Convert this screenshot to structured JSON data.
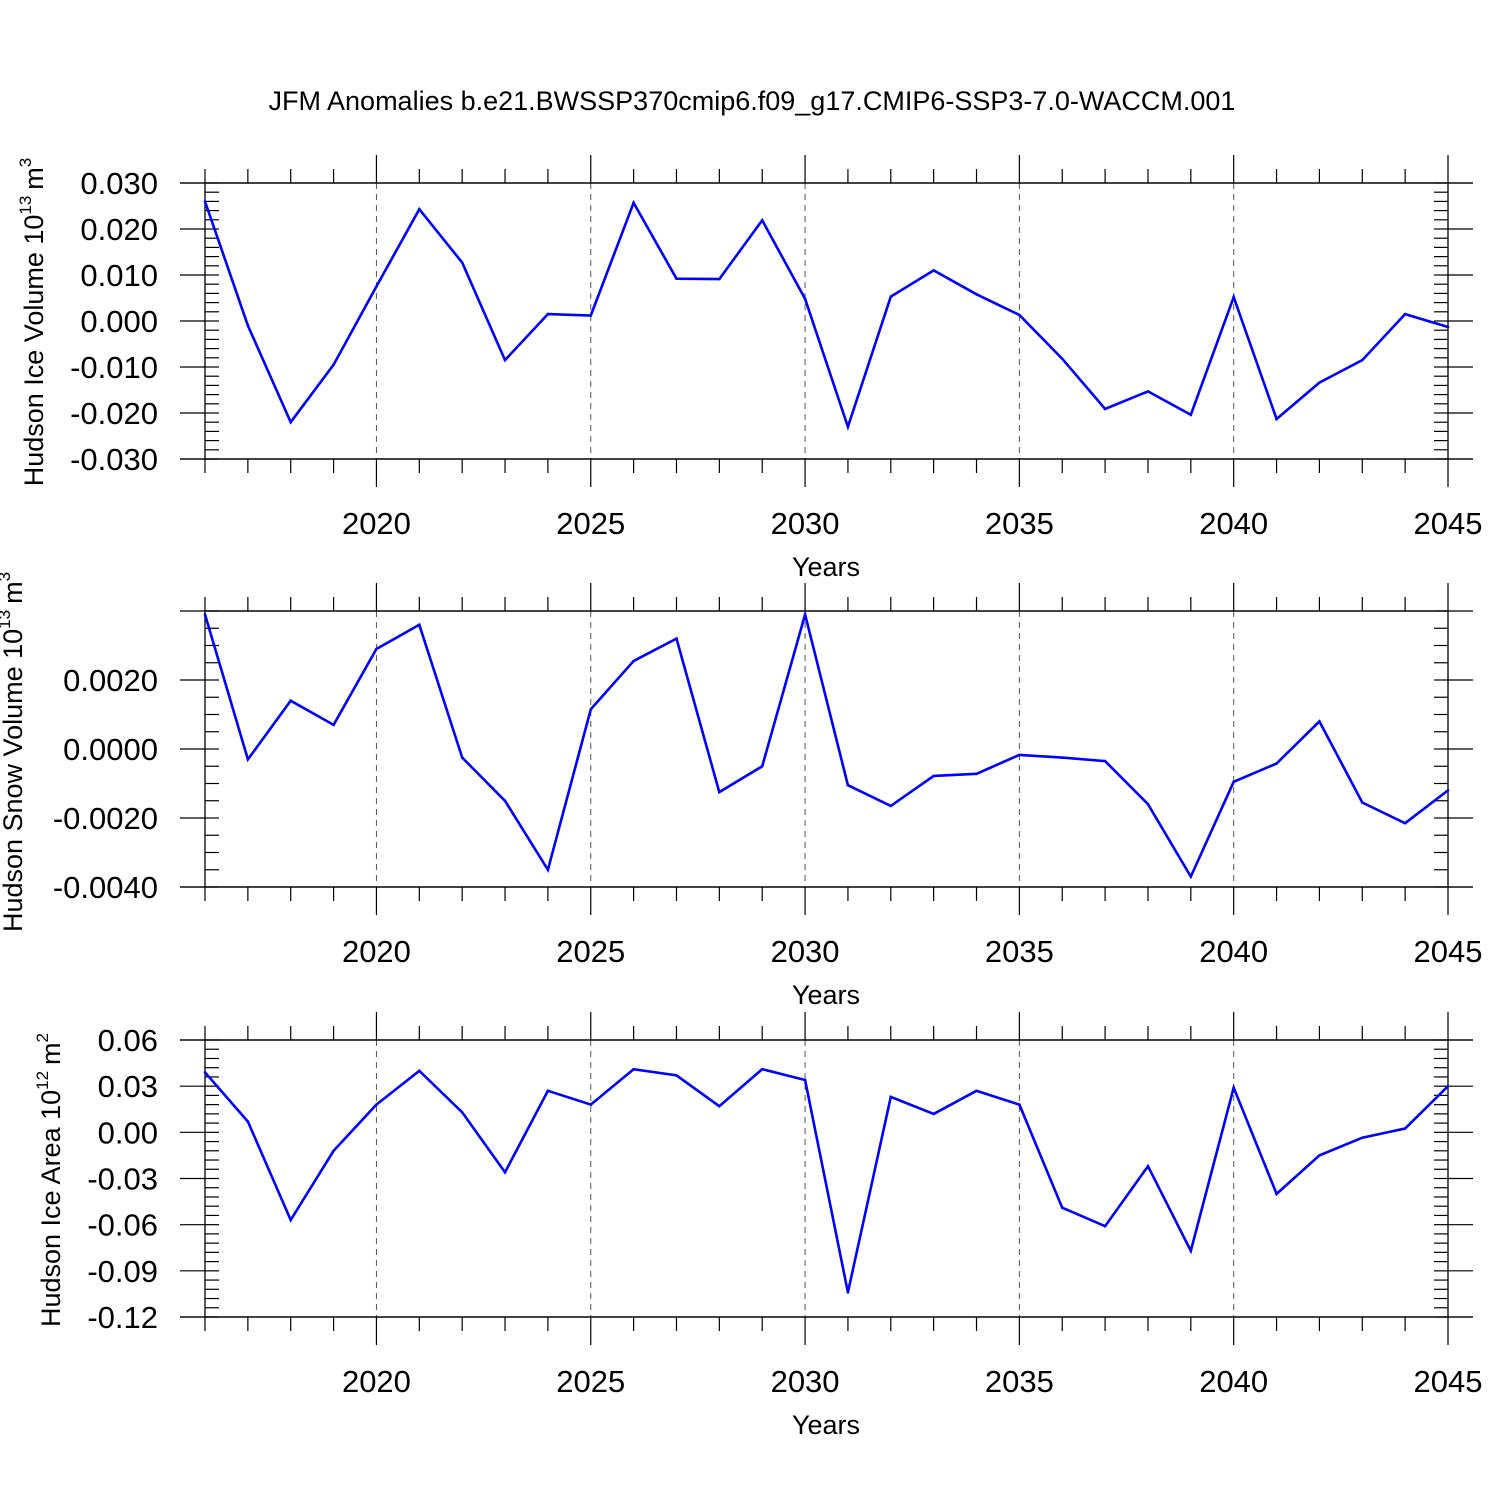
{
  "title": "JFM Anomalies b.e21.BWSSP370cmip6.f09_g17.CMIP6-SSP3-7.0-WACCM.001",
  "line_color": "#0000ff",
  "chart_data": [
    {
      "type": "line",
      "ylabel_main": "Hudson Ice Volume 10",
      "ylabel_exp": "13",
      "ylabel_unit": "m",
      "ylabel_unit_exp": "3",
      "xlabel": "Years",
      "xlim": [
        2016,
        2045
      ],
      "ylim": [
        -0.03,
        0.03
      ],
      "x_ticks": [
        "2020",
        "2025",
        "2030",
        "2035",
        "2040",
        "2045"
      ],
      "y_ticks": [
        "0.030",
        "0.020",
        "0.010",
        "0.000",
        "-0.010",
        "-0.020",
        "-0.030"
      ],
      "y_tick_values": [
        0.03,
        0.02,
        0.01,
        0.0,
        -0.01,
        -0.02,
        -0.03
      ],
      "y_minor_step": 0.002,
      "grid": "vertical dashed at major x ticks",
      "x": [
        2016,
        2017,
        2018,
        2019,
        2020,
        2021,
        2022,
        2023,
        2024,
        2025,
        2026,
        2027,
        2028,
        2029,
        2030,
        2031,
        2032,
        2033,
        2034,
        2035,
        2036,
        2037,
        2038,
        2039,
        2040,
        2041,
        2042,
        2043,
        2044,
        2045
      ],
      "values": [
        0.026,
        -0.001,
        -0.022,
        -0.0095,
        0.0075,
        0.0243,
        0.0127,
        -0.0085,
        0.0015,
        0.0012,
        0.0257,
        0.0092,
        0.0091,
        0.0219,
        0.0048,
        -0.023,
        0.0053,
        0.011,
        0.0058,
        0.0013,
        -0.0082,
        -0.0191,
        -0.0153,
        -0.0204,
        0.0052,
        -0.0213,
        -0.0134,
        -0.0085,
        0.0015,
        -0.0013
      ]
    },
    {
      "type": "line",
      "ylabel_main": "Hudson Snow Volume 10",
      "ylabel_exp": "13",
      "ylabel_unit": "m",
      "ylabel_unit_exp": "3",
      "xlabel": "Years",
      "xlim": [
        2016,
        2045
      ],
      "ylim": [
        -0.004,
        0.004
      ],
      "x_ticks": [
        "2020",
        "2025",
        "2030",
        "2035",
        "2040",
        "2045"
      ],
      "y_ticks": [
        "0.0020",
        "0.0000",
        "-0.0020",
        "-0.0040"
      ],
      "y_tick_values": [
        0.002,
        0.0,
        -0.002,
        -0.004
      ],
      "y_minor_step": 0.0005,
      "grid": "vertical dashed at major x ticks",
      "x": [
        2016,
        2017,
        2018,
        2019,
        2020,
        2021,
        2022,
        2023,
        2024,
        2025,
        2026,
        2027,
        2028,
        2029,
        2030,
        2031,
        2032,
        2033,
        2034,
        2035,
        2036,
        2037,
        2038,
        2039,
        2040,
        2041,
        2042,
        2043,
        2044,
        2045
      ],
      "values": [
        0.0039,
        -0.0003,
        0.0014,
        0.0007,
        0.0029,
        0.0036,
        -0.00025,
        -0.0015,
        -0.0035,
        0.00115,
        0.00255,
        0.0032,
        -0.00125,
        -0.0005,
        0.0039,
        -0.00105,
        -0.00165,
        -0.00078,
        -0.00072,
        -0.00017,
        -0.00025,
        -0.00035,
        -0.0016,
        -0.0037,
        -0.00095,
        -0.00042,
        0.0008,
        -0.00155,
        -0.00215,
        -0.0012
      ]
    },
    {
      "type": "line",
      "ylabel_main": "Hudson Ice Area 10",
      "ylabel_exp": "12",
      "ylabel_unit": "m",
      "ylabel_unit_exp": "2",
      "xlabel": "Years",
      "xlim": [
        2016,
        2045
      ],
      "ylim": [
        -0.12,
        0.06
      ],
      "x_ticks": [
        "2020",
        "2025",
        "2030",
        "2035",
        "2040",
        "2045"
      ],
      "y_ticks": [
        "0.06",
        "0.03",
        "0.00",
        "-0.03",
        "-0.06",
        "-0.09",
        "-0.12"
      ],
      "y_tick_values": [
        0.06,
        0.03,
        0.0,
        -0.03,
        -0.06,
        -0.09,
        -0.12
      ],
      "y_minor_step": 0.006,
      "grid": "vertical dashed at major x ticks",
      "x": [
        2016,
        2017,
        2018,
        2019,
        2020,
        2021,
        2022,
        2023,
        2024,
        2025,
        2026,
        2027,
        2028,
        2029,
        2030,
        2031,
        2032,
        2033,
        2034,
        2035,
        2036,
        2037,
        2038,
        2039,
        2040,
        2041,
        2042,
        2043,
        2044,
        2045
      ],
      "values": [
        0.039,
        0.007,
        -0.057,
        -0.012,
        0.018,
        0.04,
        0.013,
        -0.026,
        0.027,
        0.018,
        0.041,
        0.037,
        0.017,
        0.041,
        0.034,
        -0.104,
        0.023,
        0.012,
        0.027,
        0.018,
        -0.049,
        -0.061,
        -0.022,
        -0.077,
        0.029,
        -0.04,
        -0.015,
        -0.0035,
        0.0025,
        0.03
      ]
    }
  ]
}
